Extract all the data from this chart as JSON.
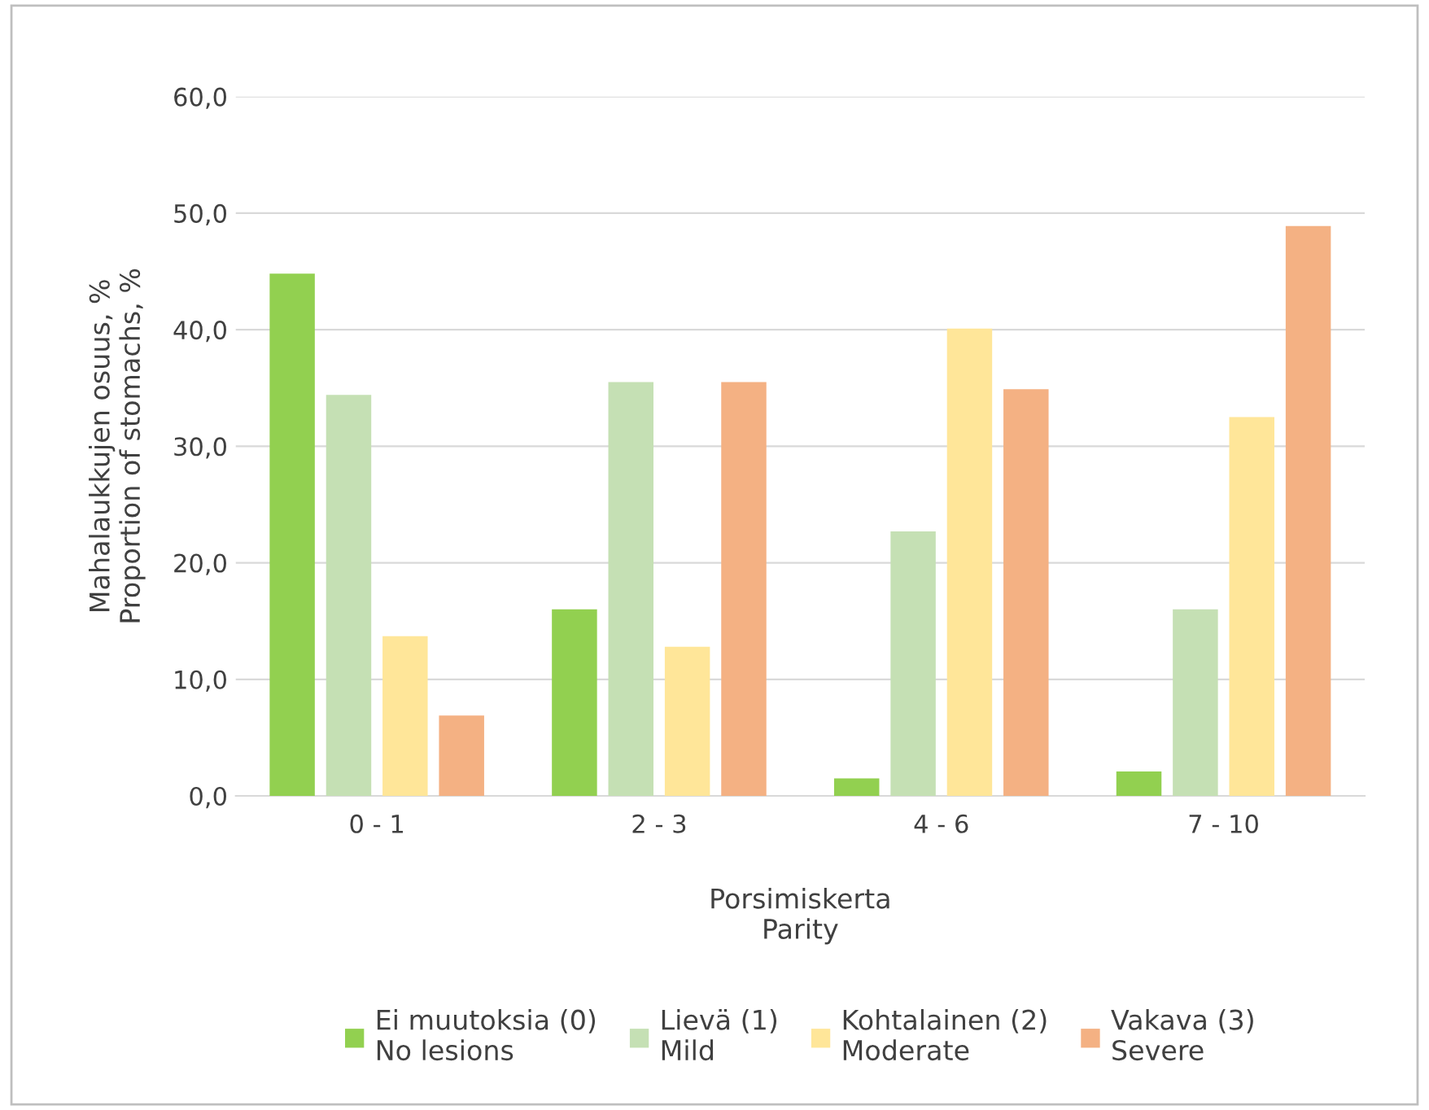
{
  "chart_data": {
    "type": "bar",
    "xlabel": "Porsimiskerta\nParity",
    "ylabel": "Mahalaukkujen osuus, %\nProportion of stomachs, %",
    "categories": [
      "0 - 1",
      "2 - 3",
      "4 - 6",
      "7 - 10"
    ],
    "series": [
      {
        "name": "Ei muutoksia (0)\nNo lesions",
        "color": "#92d050",
        "values": [
          44.8,
          16.0,
          1.5,
          2.1
        ]
      },
      {
        "name": "Lievä (1)\nMild",
        "color": "#c5e0b4",
        "values": [
          34.4,
          35.5,
          22.7,
          16.0
        ]
      },
      {
        "name": "Kohtalainen (2)\nModerate",
        "color": "#ffe699",
        "values": [
          13.7,
          12.8,
          40.1,
          32.5
        ]
      },
      {
        "name": "Vakava (3)\nSevere",
        "color": "#f4b183",
        "values": [
          6.9,
          35.5,
          34.9,
          48.9
        ]
      }
    ],
    "ylim": [
      0,
      60
    ],
    "yticks": [
      {
        "value": 0,
        "label": "0,0"
      },
      {
        "value": 10,
        "label": "10,0"
      },
      {
        "value": 20,
        "label": "20,0"
      },
      {
        "value": 30,
        "label": "30,0"
      },
      {
        "value": 40,
        "label": "40,0"
      },
      {
        "value": 50,
        "label": "50,0"
      },
      {
        "value": 60,
        "label": "60,0"
      }
    ],
    "grid": "y",
    "legend": "bottom"
  }
}
